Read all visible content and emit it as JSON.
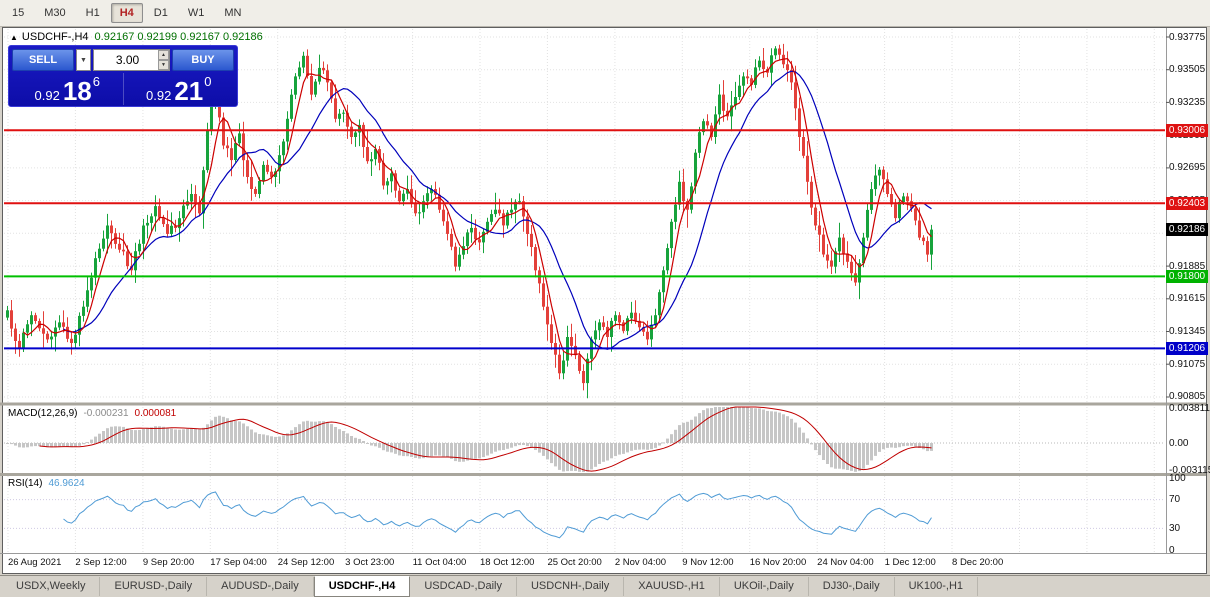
{
  "toolbar": {
    "timeframes": [
      "15",
      "M30",
      "H1",
      "H4",
      "D1",
      "W1",
      "MN"
    ],
    "active": "H4"
  },
  "chart": {
    "title_symbol": "USDCHF-,H4",
    "ohlc": "0.92167 0.92199 0.92167 0.92186",
    "trade_panel": {
      "sell_label": "SELL",
      "buy_label": "BUY",
      "volume": "3.00",
      "sell_price_main": "0.92",
      "sell_price_big": "18",
      "sell_price_sup": "6",
      "buy_price_main": "0.92",
      "buy_price_big": "21",
      "buy_price_sup": "0"
    }
  },
  "price_axis": {
    "ticks": [
      "0.93775",
      "0.93505",
      "0.93235",
      "0.92965",
      "0.92695",
      "0.92425",
      "0.92155",
      "0.91885",
      "0.91615",
      "0.91345",
      "0.91075",
      "0.90805"
    ],
    "badges": [
      {
        "label": "0.93006",
        "price": 0.93006,
        "bg": "#DE1212",
        "fg": "#FFFFFF"
      },
      {
        "label": "0.92403",
        "price": 0.92403,
        "bg": "#DE1212",
        "fg": "#FFFFFF"
      },
      {
        "label": "0.92186",
        "price": 0.92186,
        "bg": "#000000",
        "fg": "#FFFFFF"
      },
      {
        "label": "0.91800",
        "price": 0.918,
        "bg": "#00B200",
        "fg": "#FFFFFF"
      },
      {
        "label": "0.91206",
        "price": 0.91206,
        "bg": "#0000C8",
        "fg": "#FFFFFF"
      }
    ]
  },
  "indicators": {
    "macd": {
      "label": "MACD(12,26,9)",
      "value1": "-0.000231",
      "value2": "0.000081",
      "axis": [
        "0.003811",
        "0.00",
        "-0.003115"
      ],
      "fast": 12,
      "slow": 26,
      "signal": 9
    },
    "rsi": {
      "label": "RSI(14)",
      "value": "46.9624",
      "axis": [
        "100",
        "70",
        "30",
        "0"
      ],
      "period": 14
    }
  },
  "tabs": [
    {
      "label": "USDX,Weekly",
      "active": false
    },
    {
      "label": "EURUSD-,Daily",
      "active": false
    },
    {
      "label": "AUDUSD-,Daily",
      "active": false
    },
    {
      "label": "USDCHF-,H4",
      "active": true
    },
    {
      "label": "USDCAD-,Daily",
      "active": false
    },
    {
      "label": "USDCNH-,Daily",
      "active": false
    },
    {
      "label": "XAUUSD-,H1",
      "active": false
    },
    {
      "label": "UKOil-,Daily",
      "active": false
    },
    {
      "label": "DJ30-,Daily",
      "active": false
    },
    {
      "label": "UK100-,H1",
      "active": false
    }
  ],
  "chart_data": {
    "type": "candlestick",
    "symbol": "USDCHF",
    "timeframe": "H4",
    "last_price": 0.92186,
    "price_range_visible": [
      0.9076,
      0.9384
    ],
    "time_labels": [
      "26 Aug 2021",
      "2 Sep 12:00",
      "9 Sep 20:00",
      "17 Sep 04:00",
      "24 Sep 12:00",
      "3 Oct 23:00",
      "11 Oct 04:00",
      "18 Oct 12:00",
      "25 Oct 20:00",
      "2 Nov 04:00",
      "9 Nov 12:00",
      "16 Nov 20:00",
      "24 Nov 04:00",
      "1 Dec 12:00",
      "8 Dec 20:00"
    ],
    "levels": [
      {
        "price": 0.93006,
        "color": "#E01010",
        "width": 2
      },
      {
        "price": 0.92403,
        "color": "#E01010",
        "width": 2
      },
      {
        "price": 0.918,
        "color": "#00C000",
        "width": 2
      },
      {
        "price": 0.91206,
        "color": "#0000CC",
        "width": 2
      }
    ],
    "colors": {
      "bull": "#17A33C",
      "bear": "#E3403A",
      "ma_fast": "#CC0000",
      "ma_slow": "#0000BB",
      "macd_hist": "#C6C6C6",
      "macd_signal": "#C00000",
      "rsi_line": "#4F9BD5",
      "grid": "#E2E2E2"
    },
    "ma_fast_period": 5,
    "ma_slow_period": 15,
    "seed": 7,
    "count": 232,
    "close_anchors": [
      [
        0,
        0.9152
      ],
      [
        3,
        0.912
      ],
      [
        6,
        0.9148
      ],
      [
        10,
        0.9128
      ],
      [
        13,
        0.9142
      ],
      [
        16,
        0.9125
      ],
      [
        19,
        0.9155
      ],
      [
        22,
        0.9195
      ],
      [
        25,
        0.9222
      ],
      [
        28,
        0.9202
      ],
      [
        31,
        0.9185
      ],
      [
        34,
        0.9222
      ],
      [
        37,
        0.9238
      ],
      [
        40,
        0.9215
      ],
      [
        43,
        0.9228
      ],
      [
        46,
        0.9248
      ],
      [
        48,
        0.9232
      ],
      [
        50,
        0.93
      ],
      [
        52,
        0.9332
      ],
      [
        54,
        0.9288
      ],
      [
        56,
        0.9276
      ],
      [
        58,
        0.9298
      ],
      [
        60,
        0.9262
      ],
      [
        62,
        0.9248
      ],
      [
        64,
        0.9272
      ],
      [
        66,
        0.9262
      ],
      [
        68,
        0.928
      ],
      [
        70,
        0.931
      ],
      [
        72,
        0.9345
      ],
      [
        74,
        0.9362
      ],
      [
        76,
        0.933
      ],
      [
        78,
        0.9352
      ],
      [
        80,
        0.934
      ],
      [
        82,
        0.931
      ],
      [
        84,
        0.9315
      ],
      [
        86,
        0.9295
      ],
      [
        88,
        0.9305
      ],
      [
        90,
        0.9275
      ],
      [
        92,
        0.9285
      ],
      [
        94,
        0.9255
      ],
      [
        96,
        0.9265
      ],
      [
        98,
        0.9242
      ],
      [
        100,
        0.9252
      ],
      [
        102,
        0.9232
      ],
      [
        104,
        0.9242
      ],
      [
        106,
        0.9252
      ],
      [
        108,
        0.9235
      ],
      [
        110,
        0.9215
      ],
      [
        112,
        0.9188
      ],
      [
        114,
        0.9205
      ],
      [
        116,
        0.922
      ],
      [
        118,
        0.9208
      ],
      [
        120,
        0.9225
      ],
      [
        122,
        0.9235
      ],
      [
        124,
        0.9222
      ],
      [
        126,
        0.9235
      ],
      [
        128,
        0.9242
      ],
      [
        130,
        0.9215
      ],
      [
        132,
        0.9185
      ],
      [
        134,
        0.9155
      ],
      [
        136,
        0.9125
      ],
      [
        138,
        0.91
      ],
      [
        140,
        0.913
      ],
      [
        142,
        0.9115
      ],
      [
        144,
        0.9092
      ],
      [
        146,
        0.9128
      ],
      [
        148,
        0.9142
      ],
      [
        150,
        0.913
      ],
      [
        152,
        0.9148
      ],
      [
        154,
        0.9135
      ],
      [
        156,
        0.915
      ],
      [
        158,
        0.9138
      ],
      [
        160,
        0.9128
      ],
      [
        162,
        0.9148
      ],
      [
        164,
        0.9185
      ],
      [
        166,
        0.9225
      ],
      [
        168,
        0.9258
      ],
      [
        170,
        0.9235
      ],
      [
        172,
        0.9282
      ],
      [
        174,
        0.9308
      ],
      [
        176,
        0.9295
      ],
      [
        178,
        0.933
      ],
      [
        180,
        0.9312
      ],
      [
        182,
        0.9328
      ],
      [
        184,
        0.9345
      ],
      [
        186,
        0.9338
      ],
      [
        188,
        0.9358
      ],
      [
        190,
        0.9348
      ],
      [
        192,
        0.9368
      ],
      [
        194,
        0.9355
      ],
      [
        196,
        0.934
      ],
      [
        198,
        0.9295
      ],
      [
        200,
        0.9258
      ],
      [
        202,
        0.9222
      ],
      [
        204,
        0.9198
      ],
      [
        206,
        0.9188
      ],
      [
        208,
        0.9212
      ],
      [
        210,
        0.9192
      ],
      [
        212,
        0.9175
      ],
      [
        214,
        0.9212
      ],
      [
        216,
        0.9252
      ],
      [
        218,
        0.9268
      ],
      [
        220,
        0.9248
      ],
      [
        222,
        0.9228
      ],
      [
        224,
        0.9246
      ],
      [
        226,
        0.9236
      ],
      [
        228,
        0.9212
      ],
      [
        230,
        0.9198
      ],
      [
        231,
        0.92186
      ]
    ]
  }
}
